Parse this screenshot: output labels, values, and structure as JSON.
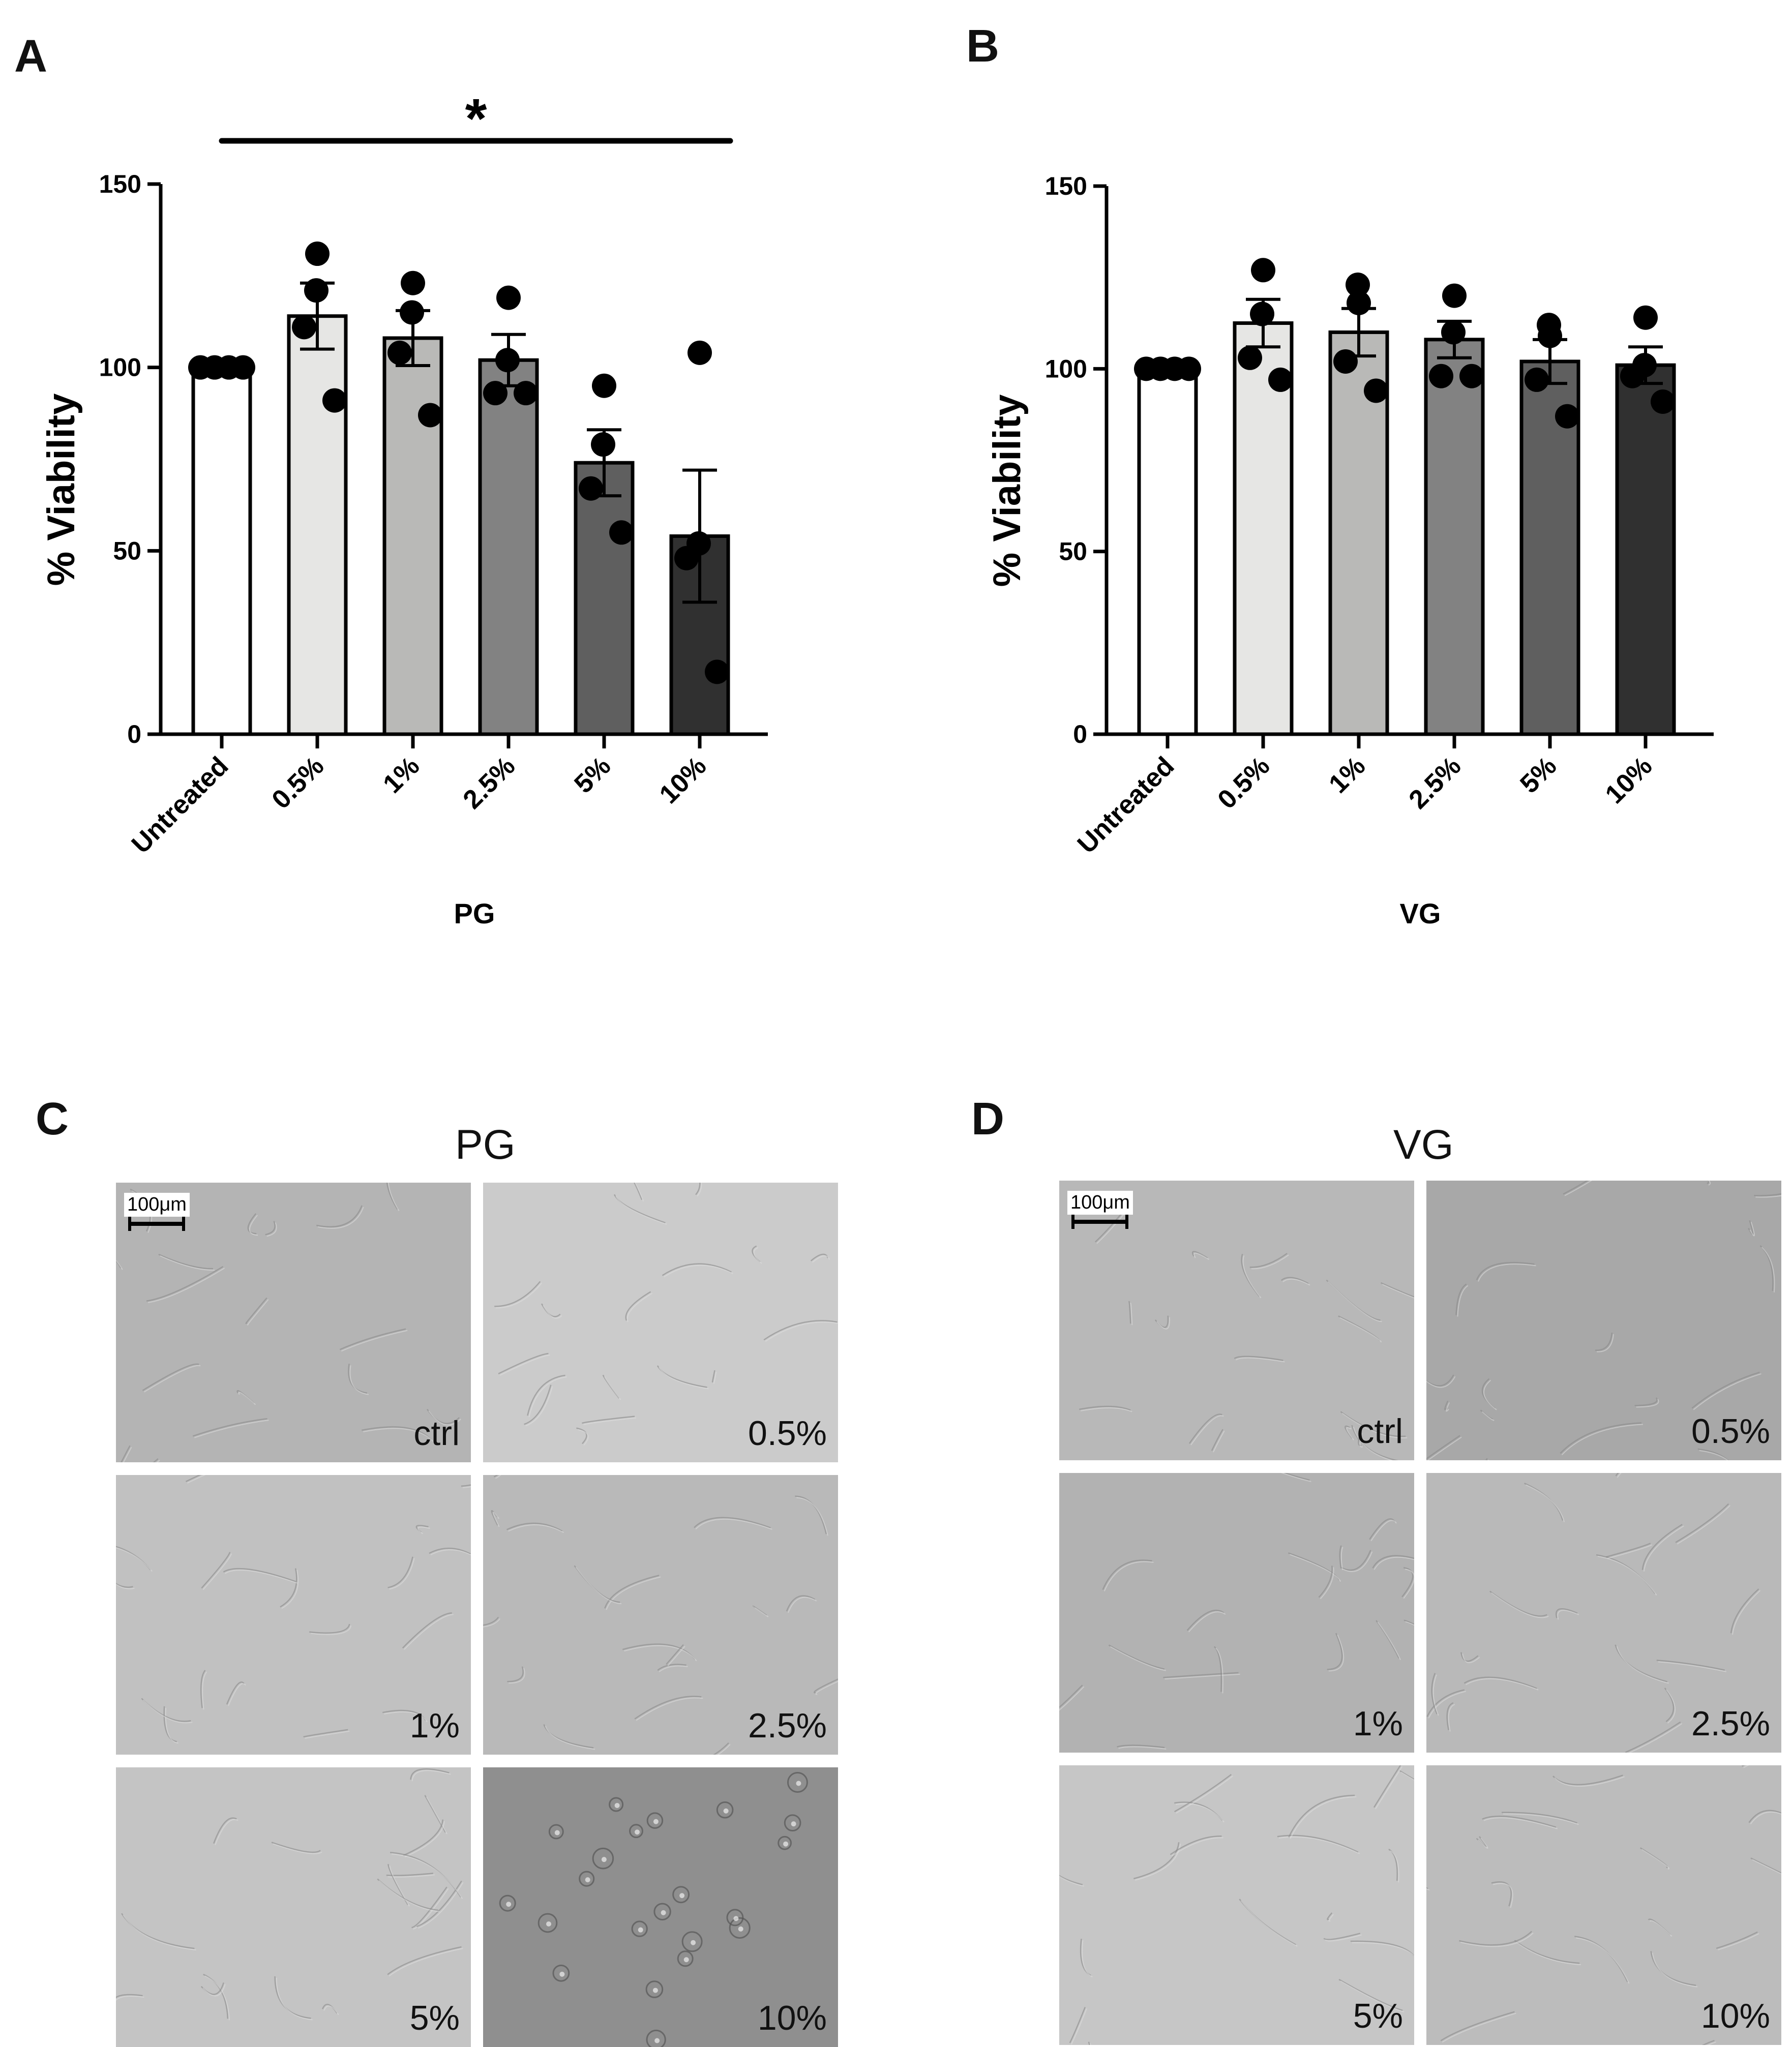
{
  "panels": {
    "A": "A",
    "B": "B",
    "C": "C",
    "D": "D"
  },
  "chart_data": [
    {
      "type": "bar",
      "panel": "A",
      "title": "",
      "xlabel": "PG",
      "ylabel": "% Viability",
      "ylim": [
        0,
        150
      ],
      "yticks": [
        0,
        50,
        100,
        150
      ],
      "categories": [
        "Untreated",
        "0.5%",
        "1%",
        "2.5%",
        "5%",
        "10%"
      ],
      "values": [
        100,
        114,
        108,
        102,
        74,
        54
      ],
      "error": [
        0,
        9,
        7.5,
        7,
        9,
        18
      ],
      "points": [
        [
          100,
          100,
          100,
          100
        ],
        [
          131,
          121,
          111,
          91
        ],
        [
          123,
          115,
          104,
          87
        ],
        [
          119,
          102,
          93,
          93
        ],
        [
          95,
          79,
          67,
          55
        ],
        [
          104,
          52,
          48,
          17
        ]
      ],
      "bar_colors": [
        "#ffffff",
        "#e6e6e4",
        "#b9b9b7",
        "#828282",
        "#5f5f5f",
        "#303030"
      ],
      "significance": {
        "from": "Untreated",
        "to": "10%",
        "label": "*"
      },
      "grid": false,
      "legend": "none"
    },
    {
      "type": "bar",
      "panel": "B",
      "title": "",
      "xlabel": "VG",
      "ylabel": "% Viability",
      "ylim": [
        0,
        150
      ],
      "yticks": [
        0,
        50,
        100,
        150
      ],
      "categories": [
        "Untreated",
        "0.5%",
        "1%",
        "2.5%",
        "5%",
        "10%"
      ],
      "values": [
        100,
        112.5,
        110,
        108,
        102,
        101
      ],
      "error": [
        0,
        6.5,
        6.5,
        5,
        6,
        5
      ],
      "points": [
        [
          100,
          100,
          100,
          100
        ],
        [
          127,
          115,
          103,
          97
        ],
        [
          118,
          123,
          102,
          94
        ],
        [
          120,
          110,
          98,
          98
        ],
        [
          109,
          112,
          97,
          87
        ],
        [
          114,
          101,
          98,
          91
        ]
      ],
      "bar_colors": [
        "#ffffff",
        "#e6e6e4",
        "#b9b9b7",
        "#828282",
        "#5f5f5f",
        "#303030"
      ],
      "grid": false,
      "legend": "none"
    }
  ],
  "micrographs": {
    "C": {
      "title": "PG",
      "scale_label": "100μm",
      "tiles": [
        {
          "label": "ctrl",
          "tone": "#b4b4b4"
        },
        {
          "label": "0.5%",
          "tone": "#cbcbcb"
        },
        {
          "label": "1%",
          "tone": "#c1c1c1"
        },
        {
          "label": "2.5%",
          "tone": "#b9b9b9"
        },
        {
          "label": "5%",
          "tone": "#c4c4c4"
        },
        {
          "label": "10%",
          "tone": "#8f8f8f"
        }
      ]
    },
    "D": {
      "title": "VG",
      "scale_label": "100μm",
      "tiles": [
        {
          "label": "ctrl",
          "tone": "#b8b8b8"
        },
        {
          "label": "0.5%",
          "tone": "#a8a8a8"
        },
        {
          "label": "1%",
          "tone": "#b2b2b2"
        },
        {
          "label": "2.5%",
          "tone": "#b9b9b9"
        },
        {
          "label": "5%",
          "tone": "#c6c6c6"
        },
        {
          "label": "10%",
          "tone": "#bcbcbc"
        }
      ]
    }
  }
}
